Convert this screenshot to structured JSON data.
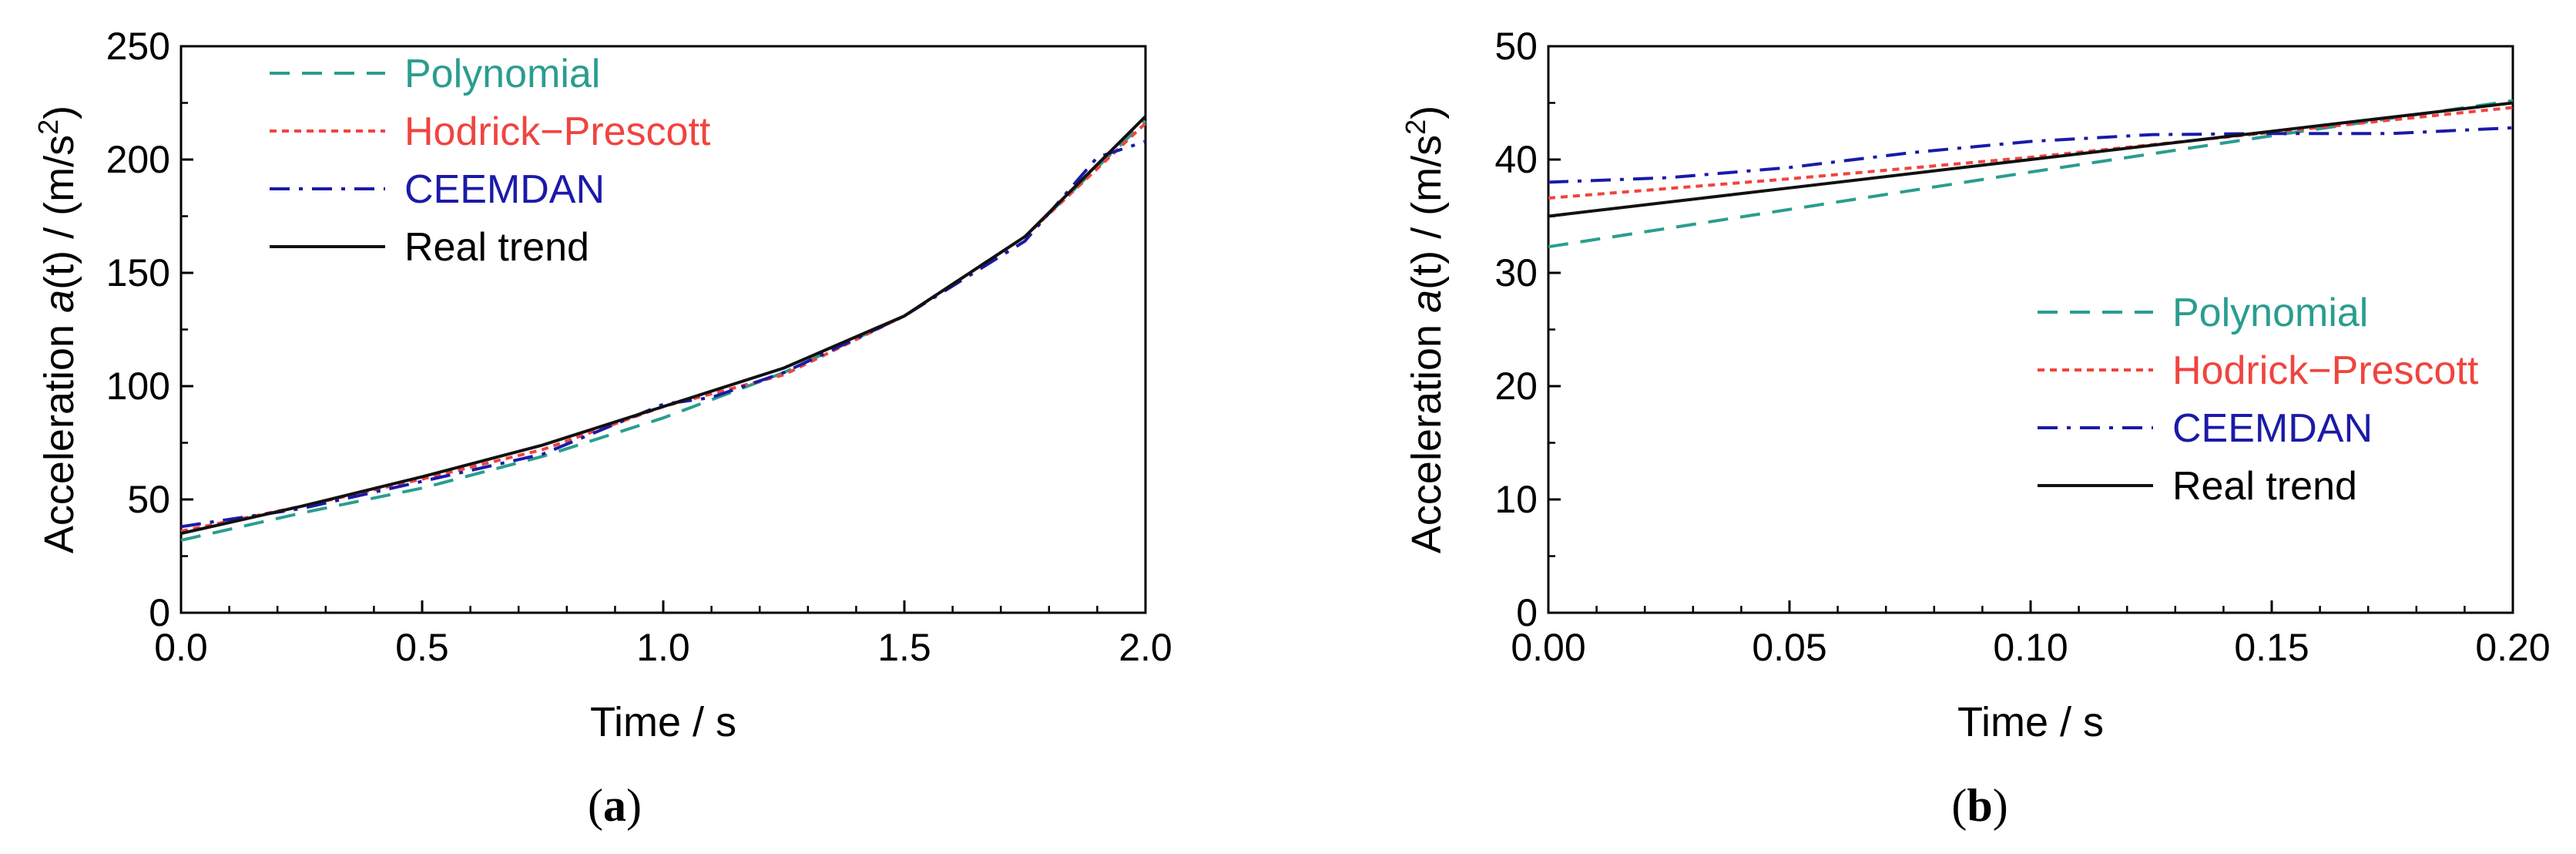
{
  "chart_data": [
    {
      "type": "line",
      "caption": "(a)",
      "xlabel": "Time / s",
      "ylabel": {
        "pre": "Acceleration ",
        "var": "a",
        "post": "(t) / (m/s",
        "sup": "2",
        "end": ")"
      },
      "xlim": [
        0,
        2
      ],
      "ylim": [
        0,
        250
      ],
      "xticks": [
        0,
        0.5,
        1.0,
        1.5,
        2.0
      ],
      "xtick_labels": [
        "0.0",
        "0.5",
        "1.0",
        "1.5",
        "2.0"
      ],
      "yticks": [
        0,
        50,
        100,
        150,
        200,
        250
      ],
      "ytick_labels": [
        "0",
        "50",
        "100",
        "150",
        "200",
        "250"
      ],
      "legend_position": "top-left",
      "series": [
        {
          "name": "Polynomial",
          "color": "#2A9D8F",
          "dash": "dashed",
          "x": [
            0,
            0.25,
            0.5,
            0.75,
            1.0,
            1.25,
            1.5,
            1.75,
            2.0
          ],
          "y": [
            32,
            44,
            55,
            69,
            86,
            106,
            131,
            166,
            217
          ]
        },
        {
          "name": "Hodrick−Prescott",
          "color": "#F0443F",
          "dash": "dotted",
          "x": [
            0,
            0.25,
            0.5,
            0.75,
            1.0,
            1.25,
            1.5,
            1.75,
            2.0
          ],
          "y": [
            36,
            47,
            59,
            72,
            91,
            105,
            131,
            166,
            216
          ]
        },
        {
          "name": "CEEMDAN",
          "color": "#1A1AA8",
          "dash": "dashdot",
          "x": [
            0,
            0.25,
            0.5,
            0.75,
            1.0,
            1.1,
            1.25,
            1.5,
            1.75,
            1.9,
            2.0
          ],
          "y": [
            38,
            46,
            58,
            70,
            92,
            95,
            106,
            131,
            164,
            201,
            208
          ]
        },
        {
          "name": "Real trend",
          "color": "#111111",
          "dash": "solid",
          "x": [
            0,
            0.25,
            0.5,
            0.75,
            1.0,
            1.25,
            1.5,
            1.75,
            2.0
          ],
          "y": [
            35,
            47,
            60,
            74,
            91,
            108,
            131,
            166,
            219
          ]
        }
      ]
    },
    {
      "type": "line",
      "caption": "(b)",
      "xlabel": "Time / s",
      "ylabel": {
        "pre": "Acceleration ",
        "var": "a",
        "post": "(t) / (m/s",
        "sup": "2",
        "end": ")"
      },
      "xlim": [
        0,
        0.2
      ],
      "ylim": [
        0,
        50
      ],
      "xticks": [
        0,
        0.05,
        0.1,
        0.15,
        0.2
      ],
      "xtick_labels": [
        "0.00",
        "0.05",
        "0.10",
        "0.15",
        "0.20"
      ],
      "yticks": [
        0,
        10,
        20,
        30,
        40,
        50
      ],
      "ytick_labels": [
        "0",
        "10",
        "20",
        "30",
        "40",
        "50"
      ],
      "legend_position": "bottom-right",
      "series": [
        {
          "name": "Polynomial",
          "color": "#2A9D8F",
          "dash": "dashed",
          "x": [
            0,
            0.05,
            0.1,
            0.15,
            0.2
          ],
          "y": [
            32.3,
            35.6,
            38.9,
            42.1,
            45.2
          ]
        },
        {
          "name": "Hodrick−Prescott",
          "color": "#F0443F",
          "dash": "dotted",
          "x": [
            0,
            0.05,
            0.1,
            0.15,
            0.2
          ],
          "y": [
            36.6,
            38.3,
            40.2,
            42.4,
            44.6
          ]
        },
        {
          "name": "CEEMDAN",
          "color": "#1A1AA8",
          "dash": "dashdot",
          "x": [
            0,
            0.025,
            0.05,
            0.075,
            0.1,
            0.125,
            0.15,
            0.175,
            0.2
          ],
          "y": [
            38.0,
            38.4,
            39.3,
            40.6,
            41.6,
            42.2,
            42.3,
            42.3,
            42.8
          ]
        },
        {
          "name": "Real trend",
          "color": "#111111",
          "dash": "solid",
          "x": [
            0,
            0.05,
            0.1,
            0.15,
            0.2
          ],
          "y": [
            35.0,
            37.5,
            40.0,
            42.5,
            45.0
          ]
        }
      ]
    }
  ]
}
